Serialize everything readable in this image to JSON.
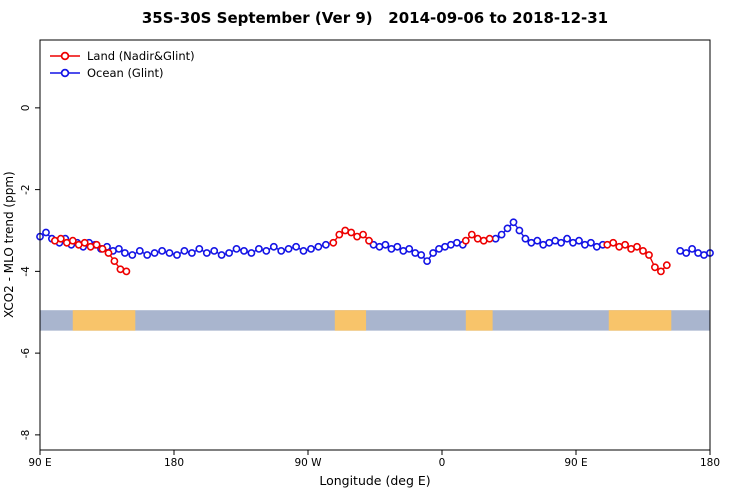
{
  "title": "35S-30S September (Ver 9)   2014-09-06 to 2018-12-31",
  "legend": {
    "items": [
      {
        "label": "Land (Nadir&Glint)",
        "color": "#ee0000"
      },
      {
        "label": "Ocean (Glint)",
        "color": "#1414e6"
      }
    ]
  },
  "axes": {
    "xlabel": "Longitude (deg E)",
    "ylabel": "XCO2 - MLO trend (ppm)",
    "x_range": [
      90,
      540
    ],
    "y_range": [
      1.66,
      -8.37
    ],
    "x_ticks": [
      {
        "pos": 90,
        "label": "90 E"
      },
      {
        "pos": 180,
        "label": "180"
      },
      {
        "pos": 270,
        "label": "90 W"
      },
      {
        "pos": 360,
        "label": "0"
      },
      {
        "pos": 450,
        "label": "90 E"
      },
      {
        "pos": 540,
        "label": "180"
      }
    ],
    "y_ticks": [
      {
        "pos": 0,
        "label": "0"
      },
      {
        "pos": -2,
        "label": "-2"
      },
      {
        "pos": -4,
        "label": "-4"
      },
      {
        "pos": -6,
        "label": "-6"
      },
      {
        "pos": -8,
        "label": "-8"
      }
    ]
  },
  "chart_data": {
    "type": "line",
    "x_units": "degrees longitude eastward from 90E (wraps past 360)",
    "y_units": "ppm",
    "series": [
      {
        "name": "Ocean (Glint)",
        "color": "#1414e6",
        "marker": "open-circle",
        "segments": [
          [
            [
              90,
              -3.15
            ],
            [
              94,
              -3.05
            ],
            [
              98,
              -3.2
            ],
            [
              103,
              -3.3
            ],
            [
              107,
              -3.2
            ],
            [
              111,
              -3.35
            ],
            [
              115,
              -3.3
            ],
            [
              119,
              -3.4
            ],
            [
              123,
              -3.3
            ],
            [
              127,
              -3.35
            ],
            [
              131,
              -3.45
            ],
            [
              135,
              -3.4
            ],
            [
              139,
              -3.5
            ],
            [
              143,
              -3.45
            ],
            [
              147,
              -3.55
            ],
            [
              152,
              -3.6
            ],
            [
              157,
              -3.5
            ],
            [
              162,
              -3.6
            ],
            [
              167,
              -3.55
            ],
            [
              172,
              -3.5
            ],
            [
              177,
              -3.55
            ],
            [
              182,
              -3.6
            ],
            [
              187,
              -3.5
            ],
            [
              192,
              -3.55
            ],
            [
              197,
              -3.45
            ],
            [
              202,
              -3.55
            ],
            [
              207,
              -3.5
            ],
            [
              212,
              -3.6
            ],
            [
              217,
              -3.55
            ],
            [
              222,
              -3.45
            ],
            [
              227,
              -3.5
            ],
            [
              232,
              -3.55
            ],
            [
              237,
              -3.45
            ],
            [
              242,
              -3.5
            ],
            [
              247,
              -3.4
            ],
            [
              252,
              -3.5
            ],
            [
              257,
              -3.45
            ],
            [
              262,
              -3.4
            ],
            [
              267,
              -3.5
            ],
            [
              272,
              -3.45
            ],
            [
              277,
              -3.4
            ],
            [
              282,
              -3.35
            ]
          ],
          [
            [
              314,
              -3.35
            ],
            [
              318,
              -3.4
            ],
            [
              322,
              -3.35
            ],
            [
              326,
              -3.45
            ],
            [
              330,
              -3.4
            ],
            [
              334,
              -3.5
            ],
            [
              338,
              -3.45
            ],
            [
              342,
              -3.55
            ],
            [
              346,
              -3.6
            ],
            [
              350,
              -3.75
            ],
            [
              354,
              -3.55
            ],
            [
              358,
              -3.45
            ],
            [
              362,
              -3.4
            ],
            [
              366,
              -3.35
            ],
            [
              370,
              -3.3
            ],
            [
              374,
              -3.35
            ]
          ],
          [
            [
              396,
              -3.2
            ],
            [
              400,
              -3.1
            ],
            [
              404,
              -2.95
            ],
            [
              408,
              -2.8
            ],
            [
              412,
              -3.0
            ],
            [
              416,
              -3.2
            ],
            [
              420,
              -3.3
            ],
            [
              424,
              -3.25
            ],
            [
              428,
              -3.35
            ],
            [
              432,
              -3.3
            ],
            [
              436,
              -3.25
            ],
            [
              440,
              -3.3
            ],
            [
              444,
              -3.2
            ],
            [
              448,
              -3.3
            ],
            [
              452,
              -3.25
            ],
            [
              456,
              -3.35
            ],
            [
              460,
              -3.3
            ],
            [
              464,
              -3.4
            ],
            [
              468,
              -3.35
            ]
          ],
          [
            [
              520,
              -3.5
            ],
            [
              524,
              -3.55
            ],
            [
              528,
              -3.45
            ],
            [
              532,
              -3.55
            ],
            [
              536,
              -3.6
            ],
            [
              540,
              -3.55
            ]
          ]
        ]
      },
      {
        "name": "Land (Nadir&Glint)",
        "color": "#ee0000",
        "marker": "open-circle",
        "segments": [
          [
            [
              100,
              -3.25
            ],
            [
              104,
              -3.2
            ],
            [
              108,
              -3.3
            ],
            [
              112,
              -3.25
            ],
            [
              116,
              -3.35
            ],
            [
              120,
              -3.3
            ],
            [
              124,
              -3.4
            ],
            [
              128,
              -3.35
            ],
            [
              132,
              -3.45
            ],
            [
              136,
              -3.55
            ],
            [
              140,
              -3.75
            ],
            [
              144,
              -3.95
            ],
            [
              148,
              -4.0
            ]
          ],
          [
            [
              287,
              -3.3
            ],
            [
              291,
              -3.1
            ],
            [
              295,
              -3.0
            ],
            [
              299,
              -3.05
            ],
            [
              303,
              -3.15
            ],
            [
              307,
              -3.1
            ],
            [
              311,
              -3.25
            ]
          ],
          [
            [
              376,
              -3.25
            ],
            [
              380,
              -3.1
            ],
            [
              384,
              -3.2
            ],
            [
              388,
              -3.25
            ],
            [
              392,
              -3.2
            ]
          ],
          [
            [
              471,
              -3.35
            ],
            [
              475,
              -3.3
            ],
            [
              479,
              -3.4
            ],
            [
              483,
              -3.35
            ],
            [
              487,
              -3.45
            ],
            [
              491,
              -3.4
            ],
            [
              495,
              -3.5
            ],
            [
              499,
              -3.6
            ],
            [
              503,
              -3.9
            ],
            [
              507,
              -4.0
            ],
            [
              511,
              -3.85
            ]
          ]
        ]
      }
    ],
    "map_strip": {
      "description": "latitude-band land/ocean strip",
      "y_top": -4.95,
      "y_bottom": -5.45,
      "ocean_color": "#a9b5ce",
      "land_color": "#f8c46a",
      "land_patches": [
        [
          112,
          154
        ],
        [
          288,
          309
        ],
        [
          376,
          394
        ],
        [
          472,
          514
        ]
      ]
    }
  }
}
